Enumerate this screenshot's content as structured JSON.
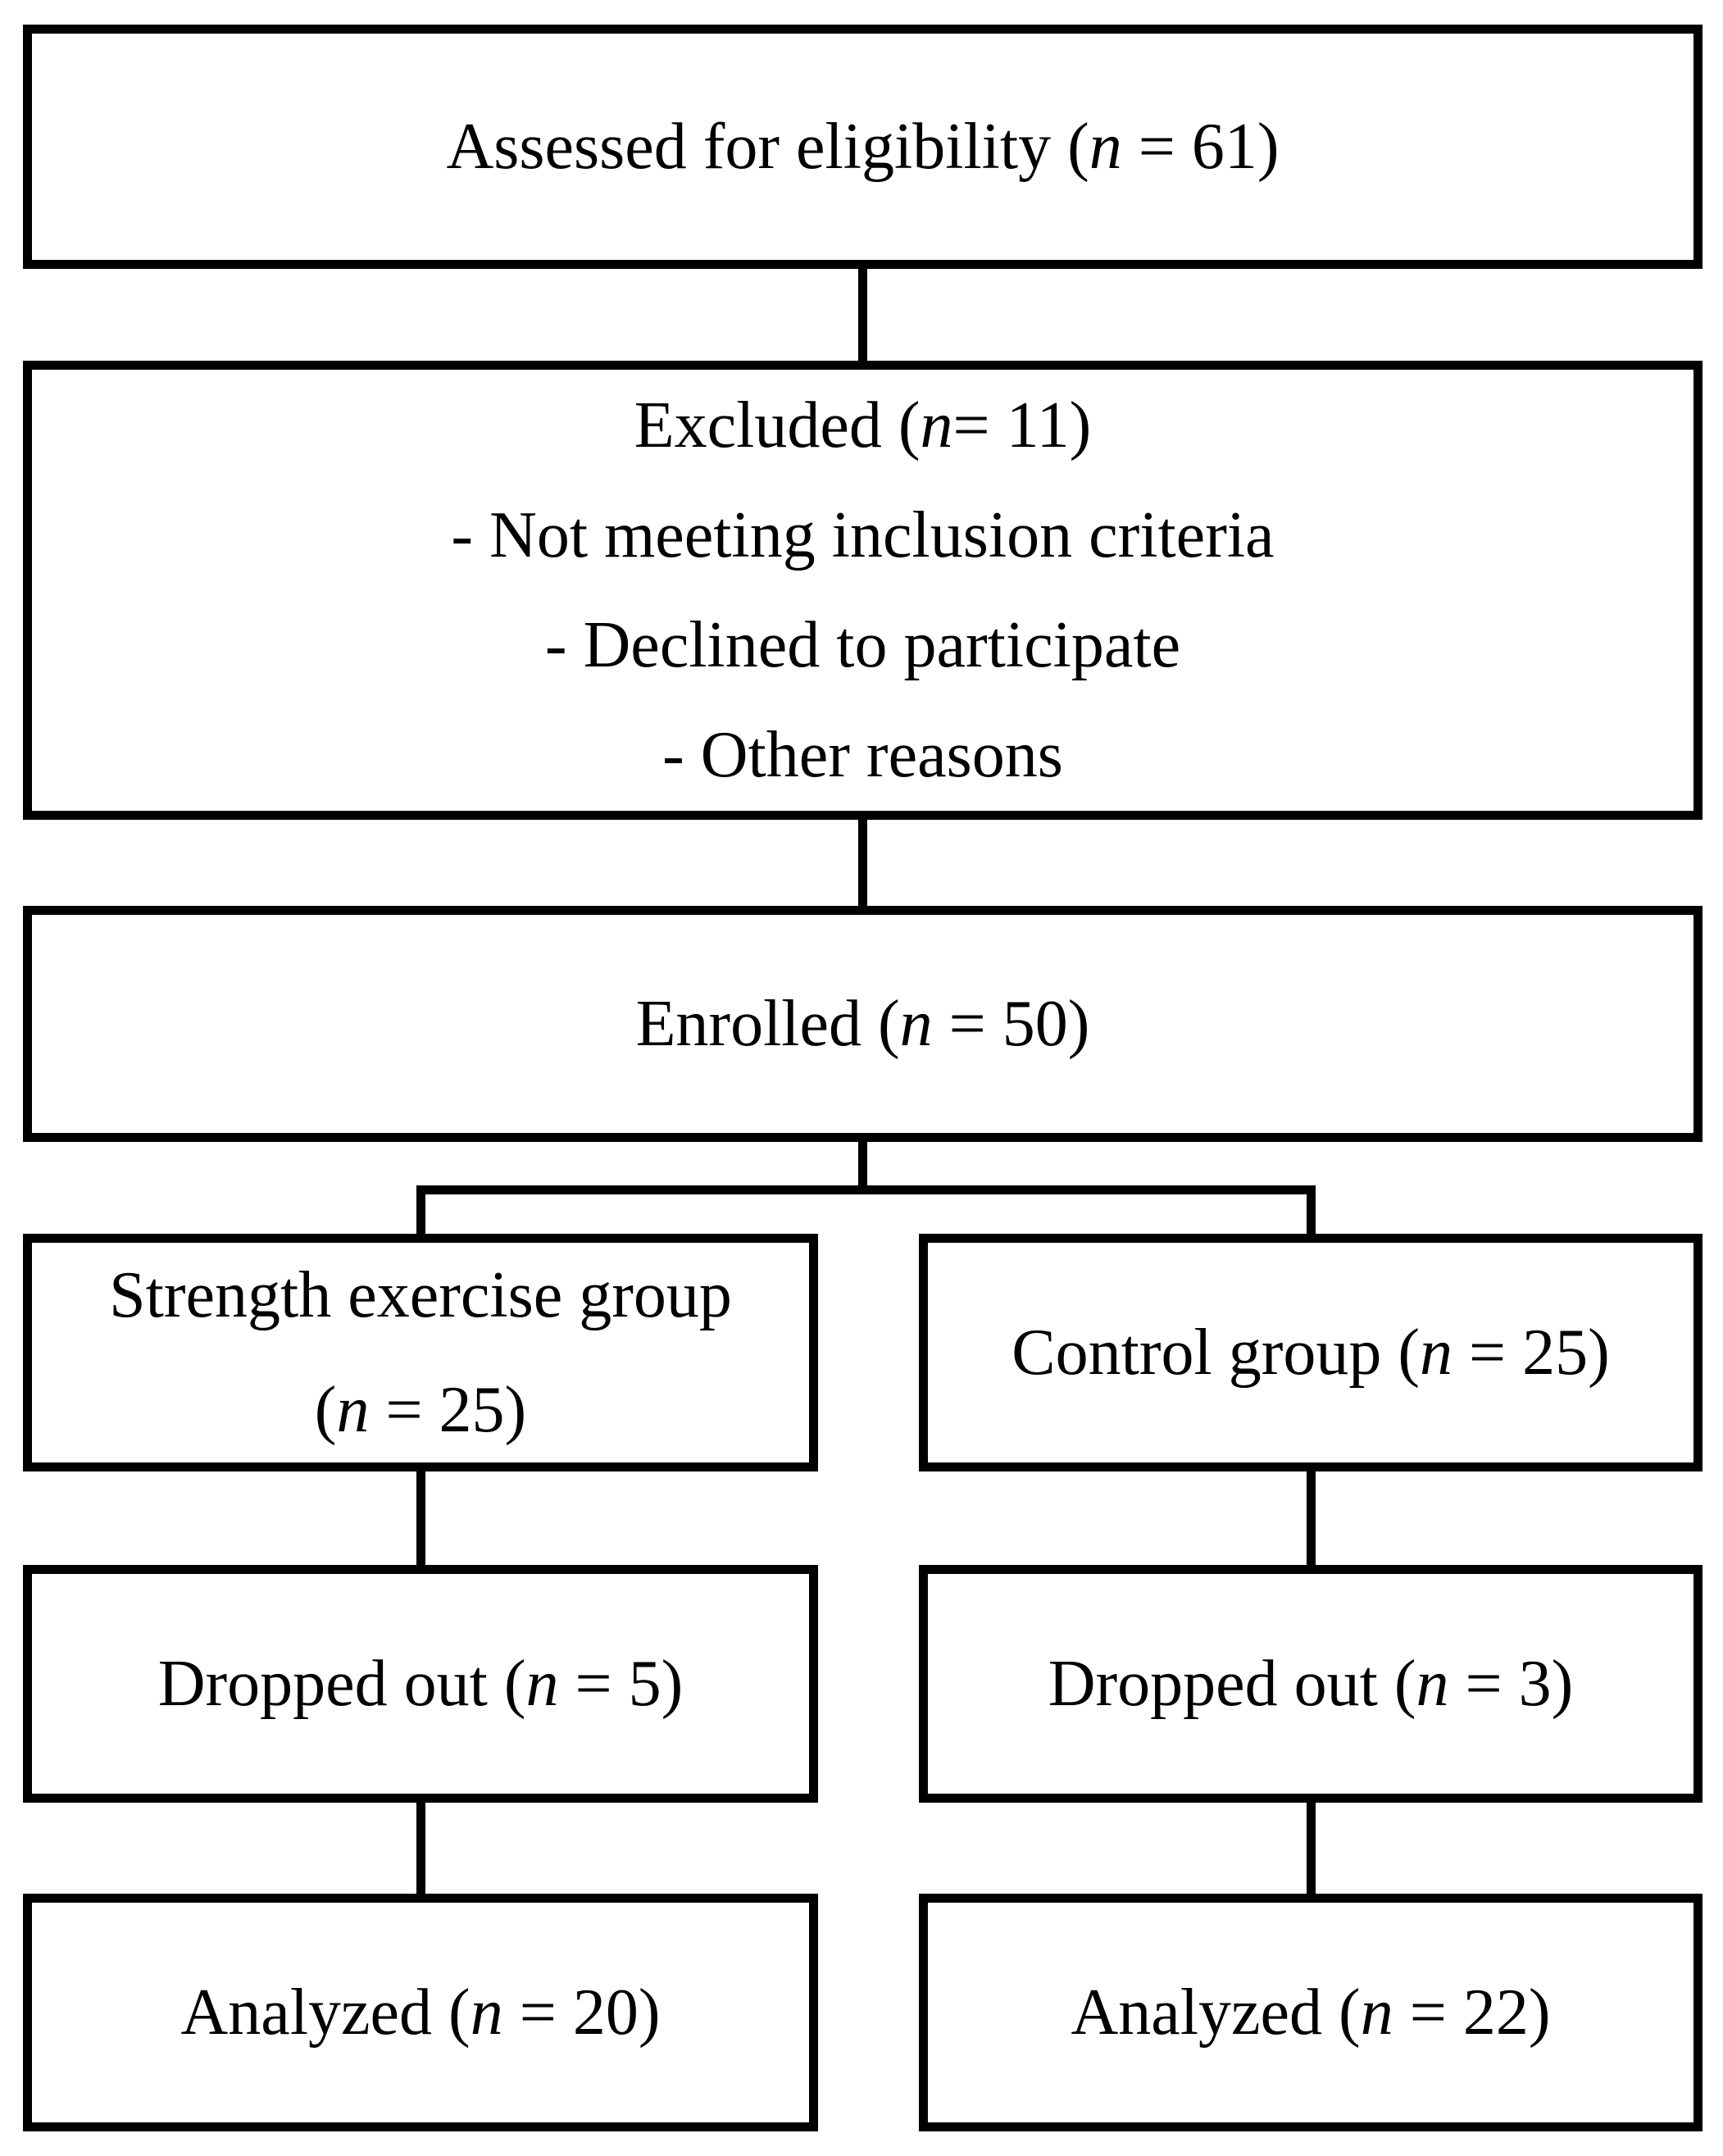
{
  "colors": {
    "background": "#ffffff",
    "line": "#000000",
    "text": "#000000"
  },
  "boxes": {
    "assessed": {
      "label_segments": [
        {
          "t": "Assessed for eligibility (",
          "i": false
        },
        {
          "t": "n",
          "i": true
        },
        {
          "t": " = 61)",
          "i": false
        }
      ]
    },
    "excluded": {
      "title_segments": [
        {
          "t": "Excluded (",
          "i": false
        },
        {
          "t": "n",
          "i": true
        },
        {
          "t": "= 11)",
          "i": false
        }
      ],
      "reasons": [
        "- Not meeting inclusion criteria",
        "- Declined to participate",
        "- Other reasons"
      ]
    },
    "enrolled": {
      "label_segments": [
        {
          "t": "Enrolled (",
          "i": false
        },
        {
          "t": "n",
          "i": true
        },
        {
          "t": " = 50)",
          "i": false
        }
      ]
    },
    "strength_group": {
      "name": "Strength exercise group",
      "count_segments": [
        {
          "t": "(",
          "i": false
        },
        {
          "t": "n",
          "i": true
        },
        {
          "t": " = 25)",
          "i": false
        }
      ]
    },
    "control_group": {
      "label_segments": [
        {
          "t": "Control group (",
          "i": false
        },
        {
          "t": "n",
          "i": true
        },
        {
          "t": " = 25)",
          "i": false
        }
      ]
    },
    "dropped_strength": {
      "label_segments": [
        {
          "t": "Dropped out (",
          "i": false
        },
        {
          "t": "n",
          "i": true
        },
        {
          "t": " = 5)",
          "i": false
        }
      ]
    },
    "dropped_control": {
      "label_segments": [
        {
          "t": "Dropped out (",
          "i": false
        },
        {
          "t": "n",
          "i": true
        },
        {
          "t": " = 3)",
          "i": false
        }
      ]
    },
    "analyzed_strength": {
      "label_segments": [
        {
          "t": "Analyzed (",
          "i": false
        },
        {
          "t": "n",
          "i": true
        },
        {
          "t": " = 20)",
          "i": false
        }
      ]
    },
    "analyzed_control": {
      "label_segments": [
        {
          "t": "Analyzed (",
          "i": false
        },
        {
          "t": "n",
          "i": true
        },
        {
          "t": " = 22)",
          "i": false
        }
      ]
    }
  }
}
